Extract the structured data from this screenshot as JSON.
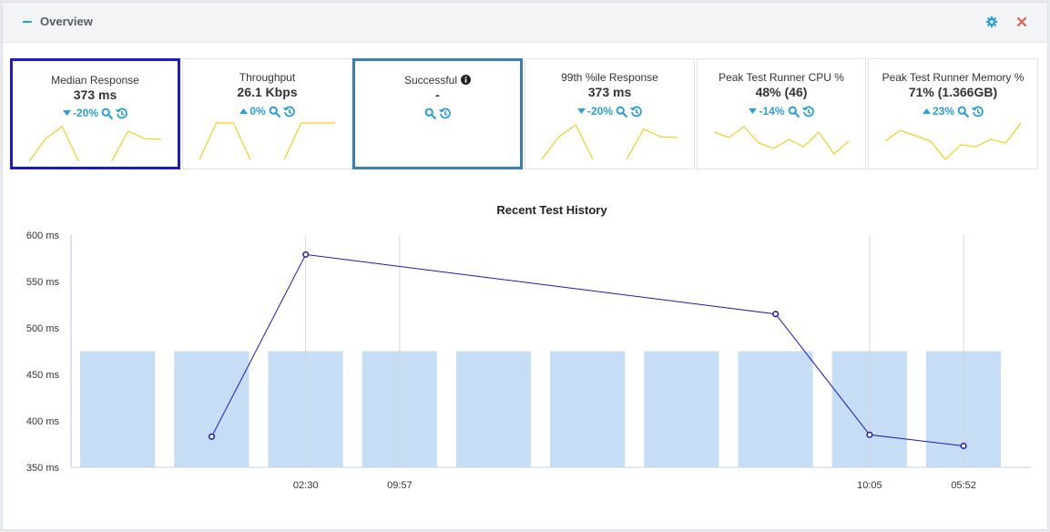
{
  "panel": {
    "title": "Overview",
    "icons": {
      "collapse": "minus-icon",
      "settings": "gear-icon",
      "close": "close-icon"
    },
    "colors": {
      "accent": "#2a9fd6",
      "close": "#e15b4f"
    }
  },
  "tiles": [
    {
      "label": "Median Response",
      "value": "373 ms",
      "trend": "-20%",
      "direction": "down",
      "selected": "primary",
      "spark": [
        0,
        0.62,
        0.95,
        0,
        null,
        0,
        0.83,
        0.62,
        0.6
      ]
    },
    {
      "label": "Throughput",
      "value": "26.1 Kbps",
      "trend": "0%",
      "direction": "up",
      "selected": "",
      "spark": [
        0,
        1,
        1,
        0,
        null,
        0,
        1,
        1,
        1
      ]
    },
    {
      "label": "Successful",
      "value": "-",
      "trend": "",
      "direction": "",
      "selected": "secondary",
      "info": true,
      "spark": []
    },
    {
      "label": "99th %ile Response",
      "value": "373 ms",
      "trend": "-20%",
      "direction": "down",
      "selected": "",
      "spark": [
        0,
        0.62,
        0.95,
        0,
        null,
        0,
        0.83,
        0.62,
        0.6
      ]
    },
    {
      "label": "Peak Test Runner CPU %",
      "value": "48% (46)",
      "trend": "-14%",
      "direction": "down",
      "selected": "",
      "spark": [
        0.75,
        0.6,
        0.9,
        0.45,
        0.3,
        0.55,
        0.35,
        0.75,
        0.15,
        0.5
      ]
    },
    {
      "label": "Peak Test Runner Memory %",
      "value": "71% (1.366GB)",
      "trend": "23%",
      "direction": "up",
      "selected": "",
      "spark": [
        0.5,
        0.8,
        0.65,
        0.5,
        0.0,
        0.4,
        0.35,
        0.55,
        0.45,
        1.0
      ]
    }
  ],
  "chart_data": {
    "type": "bar+line",
    "title": "Recent Test History",
    "y_unit": "ms",
    "ylim": [
      350,
      600
    ],
    "yticks": [
      350,
      400,
      450,
      500,
      550,
      600
    ],
    "ytick_labels": [
      "350 ms",
      "400 ms",
      "450 ms",
      "500 ms",
      "550 ms",
      "600 ms"
    ],
    "bars": {
      "count": 10,
      "value": 475,
      "color": "#c5ddf5"
    },
    "line": {
      "color": "#1b14c9",
      "points": [
        {
          "slot": 1.4,
          "value": 383
        },
        {
          "slot": 2.4,
          "value": 579
        },
        {
          "slot": 7.4,
          "value": 515
        },
        {
          "slot": 8.4,
          "value": 385
        },
        {
          "slot": 9.4,
          "value": 373
        }
      ]
    },
    "xticks": [
      {
        "slot": 2.4,
        "label": "02:30"
      },
      {
        "slot": 3.4,
        "label": "09:57"
      },
      {
        "slot": 8.4,
        "label": "10:05"
      },
      {
        "slot": 9.4,
        "label": "05:52"
      }
    ],
    "grid_x": true,
    "legend": "none"
  }
}
